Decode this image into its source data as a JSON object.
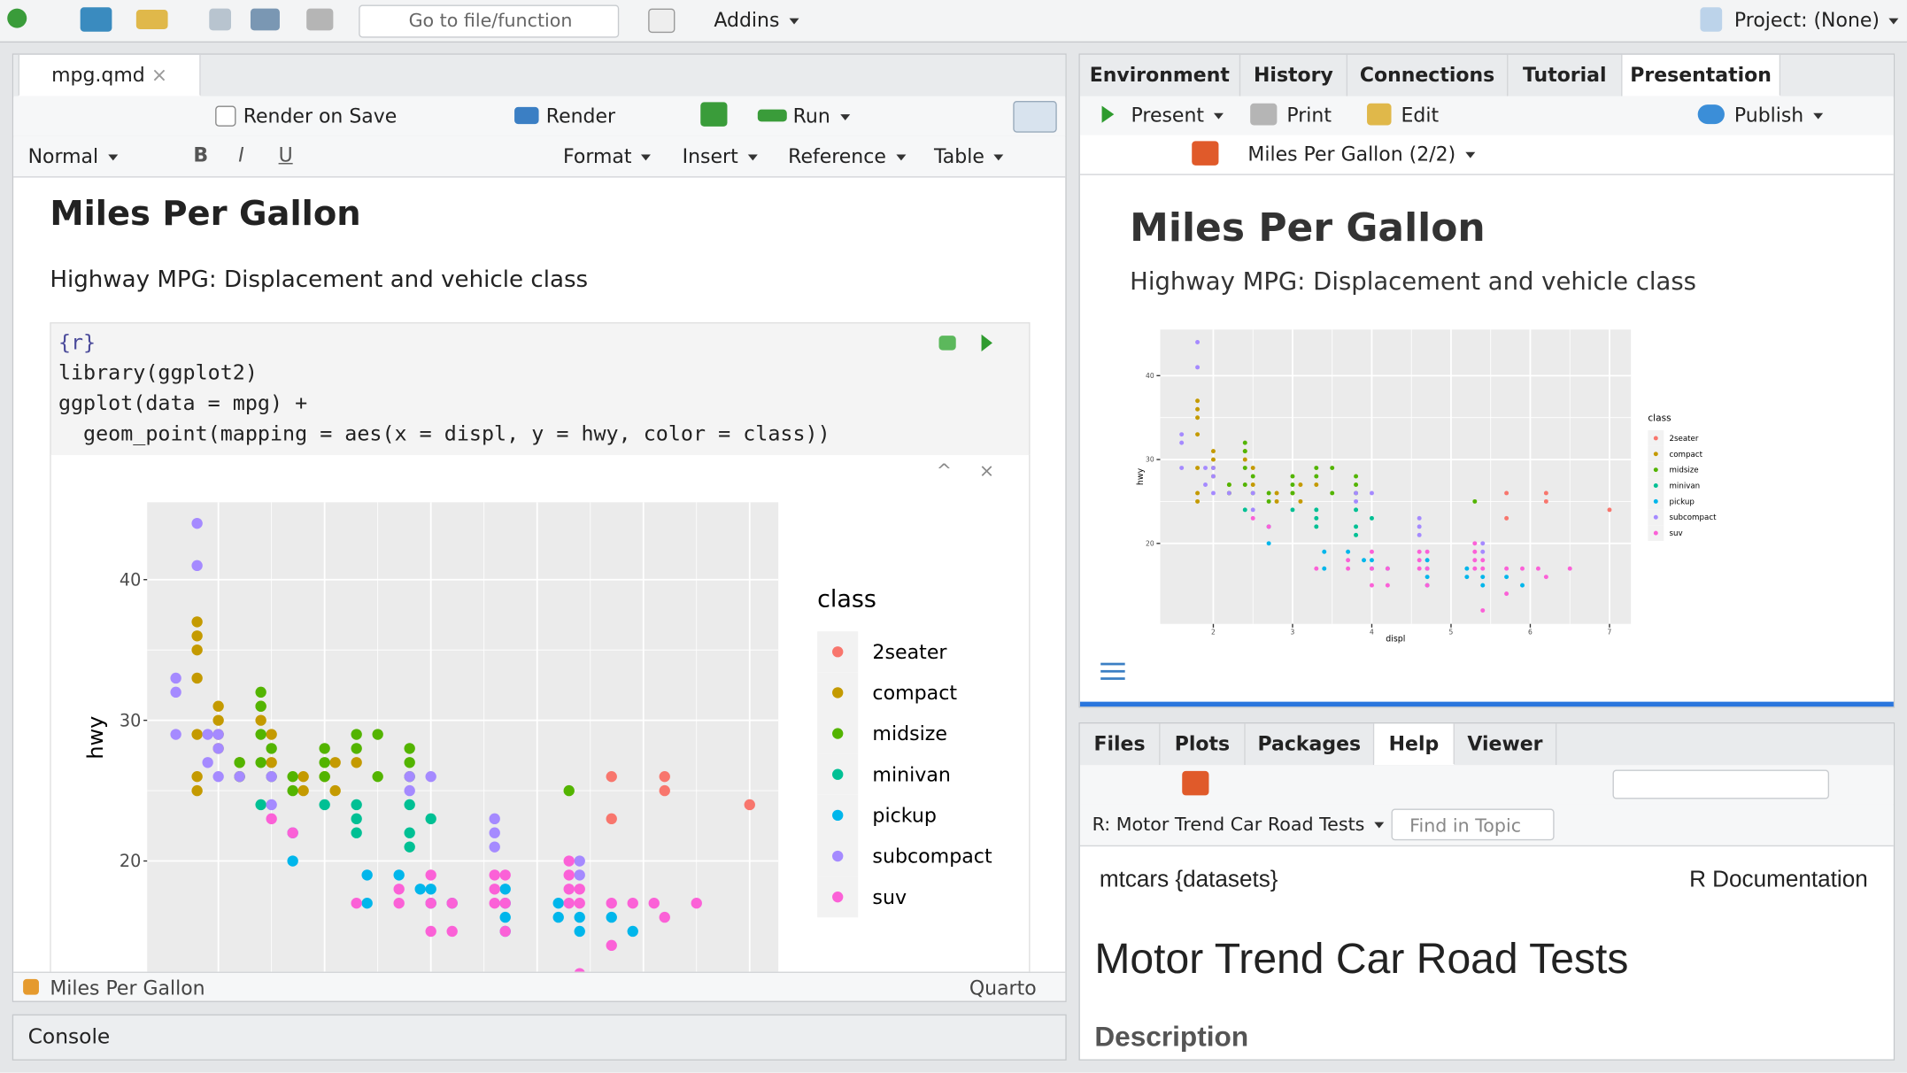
{
  "toolbar": {
    "go_to": "Go to file/function",
    "addins": "Addins",
    "project": "Project: (None)"
  },
  "source": {
    "tab": "mpg.qmd",
    "render_on_save": "Render on Save",
    "render": "Render",
    "run": "Run",
    "format_bar": [
      "Normal",
      "Format",
      "Insert",
      "Reference",
      "Table"
    ],
    "heading": "Miles Per Gallon",
    "paragraph": "Highway MPG: Displacement and vehicle class",
    "code": [
      "{r}",
      "library(ggplot2)",
      "ggplot(data = mpg) +",
      "  geom_point(mapping = aes(x = displ, y = hwy, color = class))"
    ],
    "status_left": "Miles Per Gallon",
    "status_right": "Quarto"
  },
  "console": "Console",
  "viewer": {
    "tabs": [
      "Environment",
      "History",
      "Connections",
      "Tutorial",
      "Presentation"
    ],
    "present": "Present",
    "print": "Print",
    "edit": "Edit",
    "publish": "Publish",
    "slide_nav": "Miles Per Gallon (2/2)",
    "slide_title": "Miles Per Gallon",
    "slide_subtitle": "Highway MPG: Displacement and vehicle class"
  },
  "help": {
    "tabs": [
      "Files",
      "Plots",
      "Packages",
      "Help",
      "Viewer"
    ],
    "topic": "R: Motor Trend Car Road Tests",
    "find": "Find in Topic",
    "doc_left": "mtcars {datasets}",
    "doc_right": "R Documentation",
    "doc_title": "Motor Trend Car Road Tests",
    "doc_section": "Description"
  },
  "chart_data": {
    "type": "scatter",
    "x_label": "displ",
    "y_label": "hwy",
    "legend_title": "class",
    "xlim": [
      1.33,
      7.27
    ],
    "ylim": [
      10.4,
      45.5
    ],
    "xticks": [
      2,
      3,
      4,
      5,
      6,
      7
    ],
    "yticks": [
      20,
      30,
      40
    ],
    "grid": true,
    "series": [
      {
        "name": "2seater",
        "color": "#f8766d",
        "x": [
          5.7,
          5.7,
          6.2,
          6.2,
          7.0
        ],
        "values": [
          26,
          23,
          26,
          25,
          24
        ]
      },
      {
        "name": "compact",
        "color": "#c49a00",
        "x": [
          1.8,
          1.8,
          1.8,
          1.8,
          1.8,
          1.8,
          1.8,
          2.0,
          2.0,
          2.0,
          2.0,
          2.2,
          2.2,
          2.4,
          2.4,
          2.5,
          2.5,
          2.8,
          2.8,
          3.0,
          3.1,
          3.1,
          3.3
        ],
        "values": [
          37,
          36,
          35,
          33,
          29,
          26,
          25,
          31,
          30,
          29,
          28,
          26,
          27,
          31,
          30,
          29,
          27,
          26,
          25,
          26,
          27,
          25,
          27
        ]
      },
      {
        "name": "midsize",
        "color": "#53b400",
        "x": [
          2.2,
          2.2,
          2.4,
          2.4,
          2.4,
          2.4,
          2.5,
          2.5,
          2.7,
          2.7,
          3.0,
          3.0,
          3.0,
          3.3,
          3.3,
          3.5,
          3.5,
          3.8,
          3.8,
          3.8,
          5.3
        ],
        "values": [
          27,
          26,
          32,
          31,
          29,
          27,
          28,
          26,
          26,
          25,
          28,
          26,
          27,
          29,
          28,
          29,
          26,
          28,
          26,
          27,
          25
        ]
      },
      {
        "name": "minivan",
        "color": "#00c094",
        "x": [
          2.4,
          3.0,
          3.3,
          3.3,
          3.3,
          3.8,
          3.8,
          3.8,
          4.0
        ],
        "values": [
          24,
          24,
          22,
          24,
          23,
          24,
          22,
          21,
          23
        ]
      },
      {
        "name": "pickup",
        "color": "#00b6eb",
        "x": [
          2.7,
          2.7,
          3.4,
          3.4,
          3.7,
          3.9,
          4.0,
          4.0,
          4.2,
          4.7,
          4.7,
          4.7,
          4.7,
          5.2,
          5.2,
          5.4,
          5.4,
          5.7,
          5.9
        ],
        "values": [
          20,
          22,
          17,
          19,
          19,
          18,
          18,
          17,
          17,
          16,
          17,
          15,
          18,
          16,
          17,
          15,
          16,
          16,
          15
        ]
      },
      {
        "name": "subcompact",
        "color": "#a58aff",
        "x": [
          1.6,
          1.6,
          1.6,
          1.8,
          1.8,
          1.9,
          1.9,
          2.0,
          2.0,
          2.0,
          2.2,
          2.5,
          2.5,
          3.8,
          3.8,
          4.0,
          4.6,
          4.6,
          4.6,
          5.4,
          5.4
        ],
        "values": [
          33,
          32,
          29,
          44,
          41,
          29,
          27,
          29,
          28,
          26,
          26,
          24,
          26,
          26,
          25,
          26,
          23,
          22,
          21,
          20,
          19
        ]
      },
      {
        "name": "suv",
        "color": "#fb61d7",
        "x": [
          2.5,
          2.7,
          3.3,
          3.7,
          3.7,
          4.0,
          4.0,
          4.0,
          4.2,
          4.2,
          4.6,
          4.6,
          4.6,
          4.7,
          4.7,
          4.7,
          5.3,
          5.3,
          5.3,
          5.3,
          5.4,
          5.4,
          5.4,
          5.7,
          5.7,
          5.9,
          6.1,
          6.2,
          6.5
        ],
        "values": [
          23,
          22,
          17,
          17,
          18,
          19,
          17,
          15,
          17,
          15,
          17,
          19,
          18,
          19,
          17,
          15,
          20,
          19,
          17,
          18,
          17,
          18,
          12,
          17,
          14,
          17,
          17,
          16,
          17
        ]
      }
    ]
  }
}
